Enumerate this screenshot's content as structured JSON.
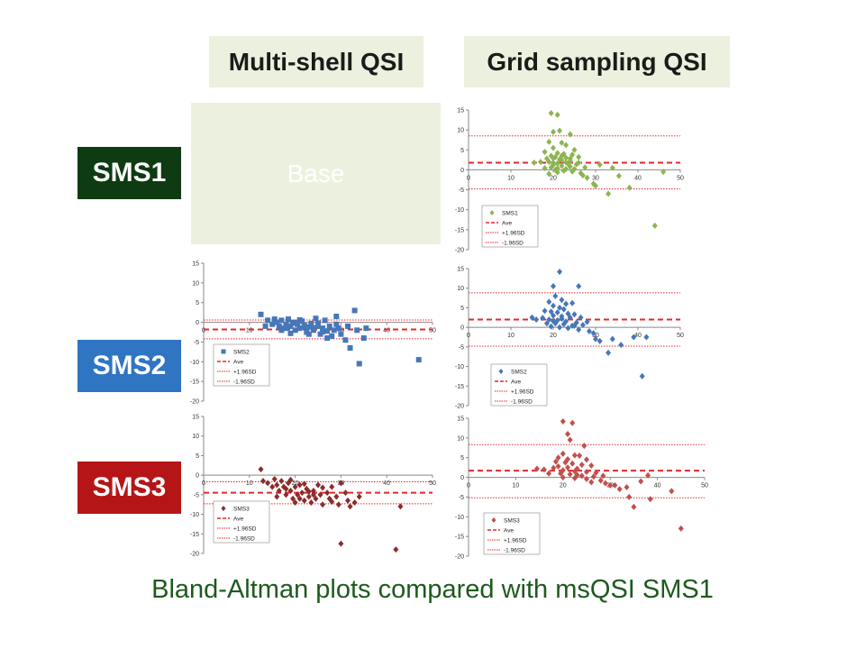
{
  "headers": {
    "left": "Multi-shell QSI",
    "right": "Grid sampling QSI"
  },
  "rows": [
    {
      "label": "SMS1",
      "color": "#0e3b12"
    },
    {
      "label": "SMS2",
      "color": "#2f75c2"
    },
    {
      "label": "SMS3",
      "color": "#b51516"
    }
  ],
  "base_label": "Base",
  "caption": "Bland-Altman plots compared with msQSI SMS1",
  "legend_labels": {
    "ave": "Ave",
    "upper": "+1.96SD",
    "lower": "-1.96SD"
  },
  "chart_data": [
    {
      "id": "grid-sms1",
      "type": "scatter",
      "series_name": "SMS1",
      "marker": "diamond",
      "color": "#8db451",
      "xlim": [
        0,
        50
      ],
      "ylim": [
        -20,
        15
      ],
      "xticks": [
        0,
        10,
        20,
        30,
        40,
        50
      ],
      "yticks": [
        15,
        10,
        5,
        0,
        -5,
        -10,
        -15,
        -20
      ],
      "ave": 1.8,
      "upper": 8.5,
      "lower": -4.8,
      "points": [
        [
          19.5,
          14.2
        ],
        [
          21,
          13.8
        ],
        [
          20,
          9.5
        ],
        [
          21.5,
          9.8
        ],
        [
          24,
          8.9
        ],
        [
          19,
          7
        ],
        [
          22,
          6.8
        ],
        [
          23,
          6.2
        ],
        [
          20,
          5.5
        ],
        [
          25,
          5
        ],
        [
          18,
          4.5
        ],
        [
          21,
          4.2
        ],
        [
          22.5,
          4
        ],
        [
          24.5,
          3.8
        ],
        [
          19.5,
          3.5
        ],
        [
          20.5,
          3.2
        ],
        [
          23,
          3
        ],
        [
          26,
          3.2
        ],
        [
          18.5,
          2.8
        ],
        [
          21.5,
          2.6
        ],
        [
          22,
          2.4
        ],
        [
          24,
          2.2
        ],
        [
          19,
          2
        ],
        [
          20,
          1.8
        ],
        [
          21,
          1.6
        ],
        [
          23.5,
          1.5
        ],
        [
          25.5,
          1.4
        ],
        [
          15.5,
          1.8
        ],
        [
          17,
          2
        ],
        [
          20,
          1.2
        ],
        [
          22,
          1
        ],
        [
          24,
          0.8
        ],
        [
          19.5,
          0.6
        ],
        [
          21,
          0.4
        ],
        [
          23,
          0.2
        ],
        [
          20.5,
          0
        ],
        [
          22.5,
          -0.2
        ],
        [
          24.5,
          -0.4
        ],
        [
          26.5,
          -0.8
        ],
        [
          21,
          -0.6
        ],
        [
          19,
          -1
        ],
        [
          27,
          -1.4
        ],
        [
          28,
          -2
        ],
        [
          29.5,
          -3.5
        ],
        [
          30,
          -4
        ],
        [
          31,
          1.3
        ],
        [
          33,
          -6
        ],
        [
          34,
          0.5
        ],
        [
          35.5,
          -1.5
        ],
        [
          38,
          -4.5
        ],
        [
          46,
          -0.5
        ],
        [
          44,
          -14
        ],
        [
          18,
          0.4
        ],
        [
          25,
          0.2
        ],
        [
          27.5,
          0.6
        ],
        [
          23,
          1.9
        ],
        [
          20,
          2.9
        ],
        [
          22,
          3.5
        ],
        [
          24,
          2.8
        ],
        [
          26,
          1.8
        ]
      ]
    },
    {
      "id": "grid-sms2",
      "type": "scatter",
      "series_name": "SMS2",
      "marker": "diamond",
      "color": "#4677b8",
      "xlim": [
        0,
        50
      ],
      "ylim": [
        -20,
        15
      ],
      "xticks": [
        0,
        10,
        20,
        30,
        40,
        50
      ],
      "yticks": [
        15,
        10,
        5,
        0,
        -5,
        -10,
        -15,
        -20
      ],
      "ave": 2.0,
      "upper": 8.8,
      "lower": -4.8,
      "points": [
        [
          21.5,
          14.2
        ],
        [
          26,
          10.5
        ],
        [
          20,
          10.5
        ],
        [
          20.5,
          8
        ],
        [
          22,
          7
        ],
        [
          19,
          6.5
        ],
        [
          23,
          6
        ],
        [
          24.5,
          6.2
        ],
        [
          20,
          5.5
        ],
        [
          21.5,
          5
        ],
        [
          22.5,
          4.6
        ],
        [
          18,
          4.2
        ],
        [
          19.5,
          4
        ],
        [
          21,
          3.8
        ],
        [
          23.5,
          3.5
        ],
        [
          25,
          3.3
        ],
        [
          20,
          3
        ],
        [
          22,
          2.8
        ],
        [
          24,
          2.5
        ],
        [
          26.5,
          2.5
        ],
        [
          16,
          2
        ],
        [
          17.5,
          2.4
        ],
        [
          19,
          2
        ],
        [
          21,
          1.8
        ],
        [
          23,
          1.5
        ],
        [
          25.5,
          1.2
        ],
        [
          28,
          1.4
        ],
        [
          20.5,
          1
        ],
        [
          22.5,
          0.8
        ],
        [
          24.5,
          0.4
        ],
        [
          19.5,
          0.2
        ],
        [
          21.5,
          0
        ],
        [
          23.5,
          -0.2
        ],
        [
          26,
          -0.6
        ],
        [
          28.5,
          -1
        ],
        [
          29.5,
          -1.5
        ],
        [
          30,
          -3
        ],
        [
          31,
          -3.5
        ],
        [
          33,
          -6.5
        ],
        [
          34,
          -3
        ],
        [
          36,
          -4.5
        ],
        [
          39,
          -2.5
        ],
        [
          42,
          -2.5
        ],
        [
          41,
          -12.5
        ],
        [
          15,
          2.5
        ],
        [
          27,
          0.6
        ],
        [
          18.5,
          1
        ],
        [
          20,
          1.6
        ],
        [
          22,
          2.2
        ],
        [
          25,
          0.4
        ]
      ]
    },
    {
      "id": "grid-sms3",
      "type": "scatter",
      "series_name": "SMS3",
      "marker": "diamond",
      "color": "#c0504d",
      "xlim": [
        0,
        50
      ],
      "ylim": [
        -20,
        15
      ],
      "xticks": [
        0,
        10,
        20,
        30,
        40,
        50
      ],
      "yticks": [
        15,
        10,
        5,
        0,
        -5,
        -10,
        -15,
        -20
      ],
      "ave": 1.7,
      "upper": 8.3,
      "lower": -5.2,
      "points": [
        [
          20,
          14.2
        ],
        [
          22,
          13.8
        ],
        [
          21,
          11
        ],
        [
          21.5,
          9.5
        ],
        [
          24.5,
          8
        ],
        [
          20,
          6
        ],
        [
          22.5,
          5.6
        ],
        [
          23.5,
          5.5
        ],
        [
          19,
          5
        ],
        [
          21,
          4.6
        ],
        [
          25,
          4.5
        ],
        [
          18.5,
          4
        ],
        [
          20.5,
          3.8
        ],
        [
          22,
          3.5
        ],
        [
          24,
          3.2
        ],
        [
          26,
          3
        ],
        [
          19,
          2.8
        ],
        [
          21,
          2.5
        ],
        [
          23,
          2.2
        ],
        [
          16,
          2
        ],
        [
          18,
          2.4
        ],
        [
          20,
          1.8
        ],
        [
          22.5,
          1.5
        ],
        [
          25,
          1.4
        ],
        [
          27,
          1.2
        ],
        [
          19.5,
          1
        ],
        [
          21.5,
          0.8
        ],
        [
          24,
          0.4
        ],
        [
          26.5,
          0.2
        ],
        [
          20,
          0
        ],
        [
          22.5,
          -0.2
        ],
        [
          25,
          -0.4
        ],
        [
          28,
          -0.8
        ],
        [
          29,
          -1.5
        ],
        [
          30,
          -2
        ],
        [
          31,
          -2
        ],
        [
          32,
          -3
        ],
        [
          33.5,
          -2.5
        ],
        [
          34,
          -5
        ],
        [
          35,
          -7.5
        ],
        [
          36.5,
          -1
        ],
        [
          38,
          0.5
        ],
        [
          38.5,
          -5.5
        ],
        [
          43,
          -3.5
        ],
        [
          45,
          -13
        ],
        [
          14.5,
          2.2
        ],
        [
          17,
          1
        ],
        [
          23,
          0.6
        ],
        [
          26,
          -1.2
        ],
        [
          28.5,
          0.4
        ]
      ]
    },
    {
      "id": "ms-sms2",
      "type": "scatter",
      "series_name": "SMS2",
      "marker": "square",
      "color": "#4677b8",
      "xlim": [
        0,
        50
      ],
      "ylim": [
        -20,
        15
      ],
      "xticks": [
        0,
        10,
        20,
        30,
        40,
        50
      ],
      "yticks": [
        15,
        10,
        5,
        0,
        -5,
        -10,
        -15,
        -20
      ],
      "ave": -1.8,
      "upper": 0.6,
      "lower": -4.2,
      "points": [
        [
          12.5,
          2
        ],
        [
          14,
          0.5
        ],
        [
          15,
          -0.5
        ],
        [
          16,
          0
        ],
        [
          16.5,
          -1
        ],
        [
          17,
          0.5
        ],
        [
          17.5,
          -1.5
        ],
        [
          18,
          -0.5
        ],
        [
          18.5,
          0.8
        ],
        [
          19,
          -1
        ],
        [
          19.5,
          0
        ],
        [
          20,
          -2
        ],
        [
          20.5,
          -0.5
        ],
        [
          21,
          -1.5
        ],
        [
          21.5,
          0.3
        ],
        [
          22,
          -1
        ],
        [
          22.5,
          -2.5
        ],
        [
          23,
          -1.2
        ],
        [
          23.5,
          -0.3
        ],
        [
          24,
          -2
        ],
        [
          24.5,
          1
        ],
        [
          25,
          -1
        ],
        [
          25.5,
          -3
        ],
        [
          26,
          -1.5
        ],
        [
          26.5,
          0.5
        ],
        [
          27,
          -2.2
        ],
        [
          27.5,
          -1
        ],
        [
          28,
          -3.5
        ],
        [
          28.5,
          -2
        ],
        [
          29,
          1.5
        ],
        [
          29.5,
          -1.5
        ],
        [
          30,
          -3
        ],
        [
          31,
          -4.5
        ],
        [
          31.5,
          -1
        ],
        [
          32,
          -6.5
        ],
        [
          33,
          3
        ],
        [
          33.5,
          -2
        ],
        [
          34,
          -10.5
        ],
        [
          35,
          -4
        ],
        [
          35.5,
          -1.5
        ],
        [
          47,
          -9.5
        ],
        [
          13.5,
          -1
        ],
        [
          15.5,
          0.8
        ],
        [
          17,
          -2
        ],
        [
          19,
          -2.8
        ],
        [
          21,
          0.6
        ],
        [
          23,
          -3
        ],
        [
          25,
          -0.2
        ],
        [
          27,
          -4
        ],
        [
          29,
          -0.5
        ],
        [
          18,
          -1.5
        ],
        [
          20,
          -0.2
        ],
        [
          22,
          -0.8
        ],
        [
          24,
          -1.4
        ],
        [
          26,
          -2.4
        ]
      ]
    },
    {
      "id": "ms-sms3",
      "type": "scatter",
      "series_name": "SMS3",
      "marker": "diamond",
      "color": "#8b2d2b",
      "xlim": [
        0,
        50
      ],
      "ylim": [
        -20,
        15
      ],
      "xticks": [
        0,
        10,
        20,
        30,
        40,
        50
      ],
      "yticks": [
        15,
        10,
        5,
        0,
        -5,
        -10,
        -15,
        -20
      ],
      "ave": -4.5,
      "upper": -1.7,
      "lower": -7.3,
      "points": [
        [
          12.5,
          1.5
        ],
        [
          13,
          -1.5
        ],
        [
          14,
          -2
        ],
        [
          15,
          -3
        ],
        [
          15.5,
          -1
        ],
        [
          16,
          -2.5
        ],
        [
          16.5,
          -4
        ],
        [
          17,
          -1.5
        ],
        [
          17.5,
          -3
        ],
        [
          18,
          -5
        ],
        [
          18.5,
          -2
        ],
        [
          19,
          -4
        ],
        [
          19.5,
          -6
        ],
        [
          20,
          -3
        ],
        [
          20.5,
          -5
        ],
        [
          21,
          -2.5
        ],
        [
          21.5,
          -4.5
        ],
        [
          22,
          -6.5
        ],
        [
          22.5,
          -3.5
        ],
        [
          23,
          -5.5
        ],
        [
          23.5,
          -7
        ],
        [
          24,
          -4
        ],
        [
          24.5,
          -6
        ],
        [
          25,
          -2.5
        ],
        [
          25.5,
          -5
        ],
        [
          26,
          -7.5
        ],
        [
          27,
          -4.5
        ],
        [
          27.5,
          -6
        ],
        [
          28,
          -3
        ],
        [
          29,
          -5.5
        ],
        [
          29.5,
          -7.5
        ],
        [
          30,
          -2
        ],
        [
          31,
          -4.5
        ],
        [
          31.5,
          -6.5
        ],
        [
          32,
          -8
        ],
        [
          33,
          -7
        ],
        [
          34,
          -5.5
        ],
        [
          30,
          -17.5
        ],
        [
          42,
          -19
        ],
        [
          43,
          -8
        ],
        [
          16,
          -5.5
        ],
        [
          18,
          -3.5
        ],
        [
          20,
          -7
        ],
        [
          22,
          -2.2
        ],
        [
          24,
          -5
        ],
        [
          26,
          -3.2
        ],
        [
          28,
          -6.8
        ],
        [
          19,
          -1.2
        ],
        [
          21,
          -6
        ],
        [
          23,
          -4.2
        ]
      ]
    }
  ]
}
